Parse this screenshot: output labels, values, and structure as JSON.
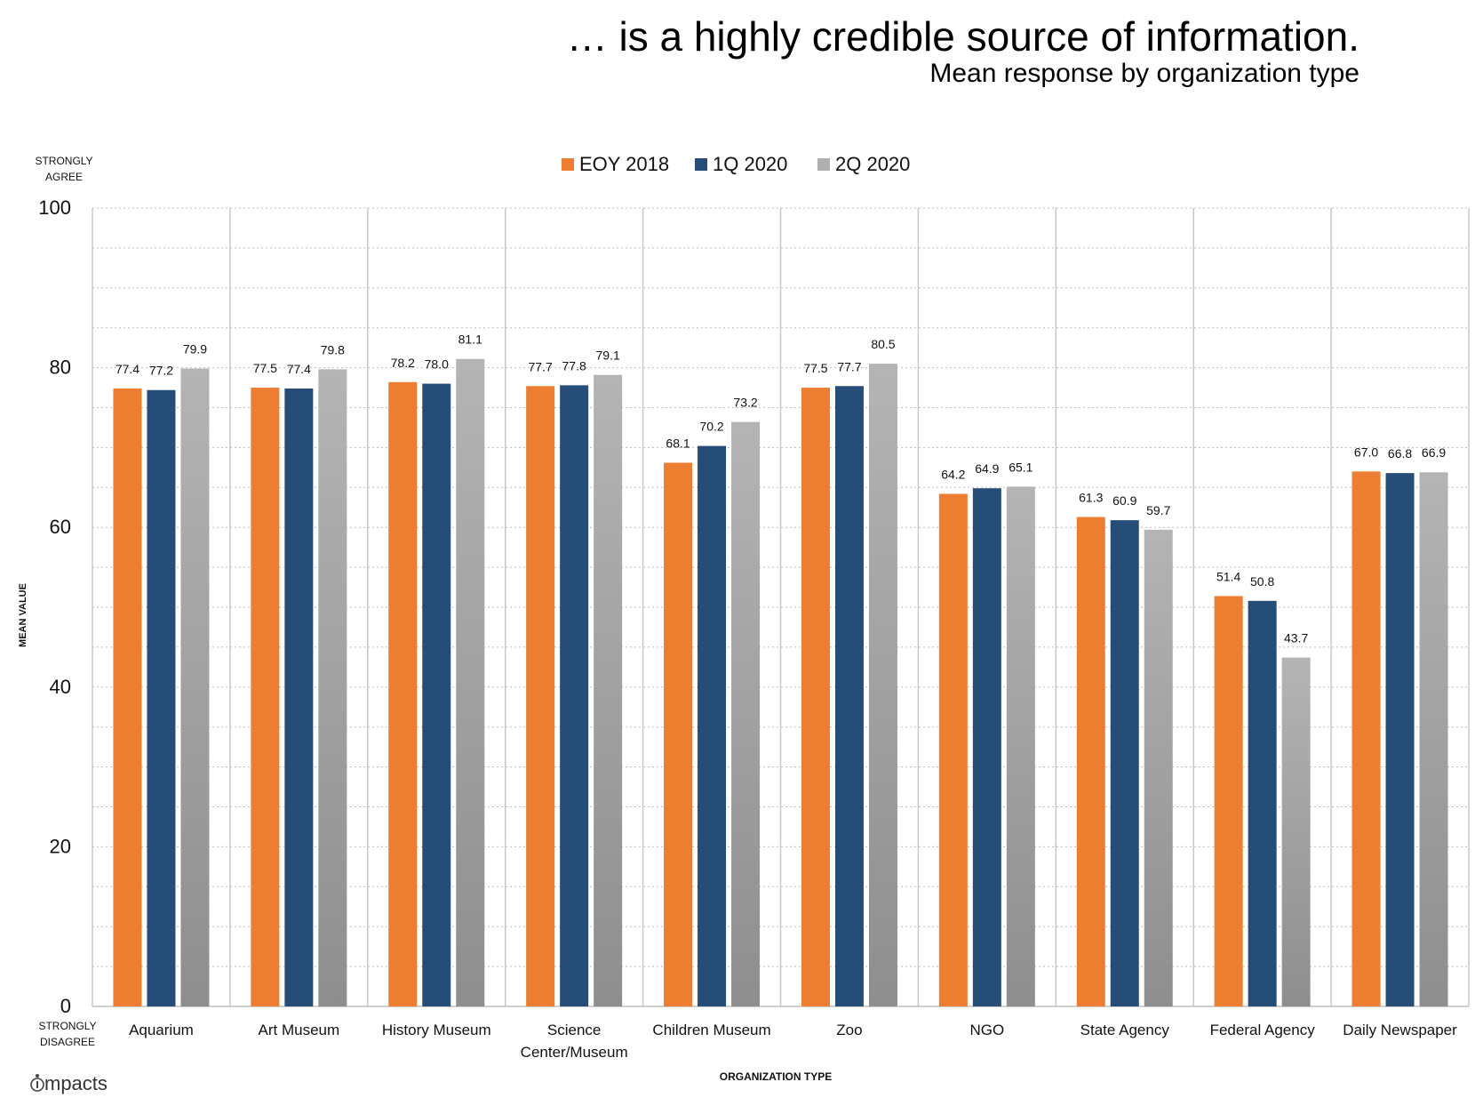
{
  "chart_data": {
    "type": "bar",
    "title": "… is a highly credible source of information.",
    "subtitle": "Mean response by organization type",
    "xlabel": "ORGANIZATION TYPE",
    "ylabel": "MEAN VALUE",
    "y_top_label": [
      "STRONGLY",
      "AGREE"
    ],
    "y_bottom_label": [
      "STRONGLY",
      "DISAGREE"
    ],
    "ylim": [
      0,
      100
    ],
    "yticks": [
      0,
      20,
      40,
      60,
      80,
      100
    ],
    "grid": true,
    "legend_position": "top",
    "categories": [
      [
        "Aquarium"
      ],
      [
        "Art Museum"
      ],
      [
        "History Museum"
      ],
      [
        "Science",
        "Center/Museum"
      ],
      [
        "Children Museum"
      ],
      [
        "Zoo"
      ],
      [
        "NGO"
      ],
      [
        "State Agency"
      ],
      [
        "Federal Agency"
      ],
      [
        "Daily Newspaper"
      ]
    ],
    "series": [
      {
        "name": "EOY 2018",
        "color": "#ED7D31",
        "values": [
          77.4,
          77.5,
          78.2,
          77.7,
          68.1,
          77.5,
          64.2,
          61.3,
          51.4,
          67.0
        ],
        "labels": [
          "77.4",
          "77.5",
          "78.2",
          "77.7",
          "68.1",
          "77.5",
          "64.2",
          "61.3",
          "51.4",
          "67.0"
        ]
      },
      {
        "name": "1Q 2020",
        "color": "#264C78",
        "values": [
          77.2,
          77.4,
          78.0,
          77.8,
          70.2,
          77.7,
          64.9,
          60.9,
          50.8,
          66.8
        ],
        "labels": [
          "77.2",
          "77.4",
          "78.0",
          "77.8",
          "70.2",
          "77.7",
          "64.9",
          "60.9",
          "50.8",
          "66.8"
        ]
      },
      {
        "name": "2Q 2020",
        "color": "#A5A5A5",
        "values": [
          79.9,
          79.8,
          81.1,
          79.1,
          73.2,
          80.5,
          65.1,
          59.7,
          43.7,
          66.9
        ],
        "labels": [
          "79.9",
          "79.8",
          "81.1",
          "79.1",
          "73.2",
          "80.5",
          "65.1",
          "59.7",
          "43.7",
          "66.9"
        ]
      }
    ]
  },
  "branding": {
    "logo_text": "mpacts",
    "logo_icon": "impacts-logo-icon"
  }
}
